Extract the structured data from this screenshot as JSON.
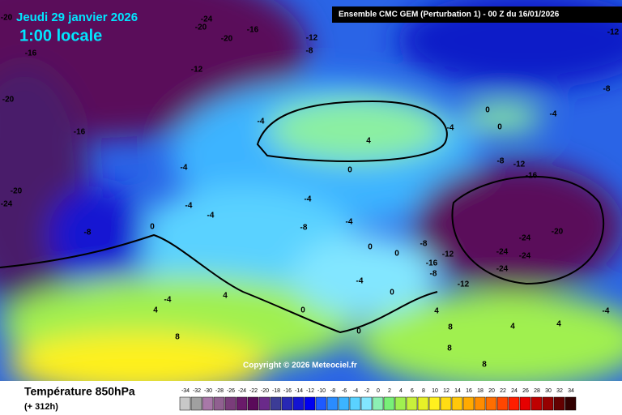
{
  "header": {
    "date": "Jeudi 29 janvier 2026",
    "time": "1:00 locale",
    "model": "Ensemble CMC GEM  (Perturbation 1)  -  00 Z du 16/01/2026",
    "copyright": "Copyright © 2026 Meteociel.fr"
  },
  "map": {
    "contour_labels": [
      -20,
      -24,
      -20,
      -16,
      -20,
      -12,
      -8,
      -12,
      -16,
      -12,
      -20,
      -16,
      -4,
      4,
      0,
      -4,
      -8,
      -4,
      0,
      -8,
      -12,
      -16,
      -4,
      0,
      -20,
      -24,
      -4,
      -4,
      -4,
      -4,
      -8,
      0,
      -8,
      -20,
      -8,
      -24,
      0,
      0,
      -24,
      -24,
      -16,
      -12,
      -24,
      -8,
      -12,
      -4,
      -4,
      4,
      0,
      0,
      4,
      4,
      -4,
      0,
      8,
      8,
      4,
      4,
      8,
      8
    ]
  },
  "legend": {
    "title": "Température 850hPa",
    "lead": "(+ 312h)",
    "ticks": [
      -34,
      -32,
      -30,
      -28,
      -26,
      -24,
      -22,
      -20,
      -18,
      -16,
      -14,
      -12,
      -10,
      -8,
      -6,
      -4,
      -2,
      0,
      2,
      4,
      6,
      8,
      10,
      12,
      14,
      16,
      18,
      20,
      22,
      24,
      26,
      28,
      30,
      32,
      34
    ],
    "colors": [
      "#c8c8c8",
      "#a0a0a0",
      "#a878a8",
      "#906090",
      "#7a3c7a",
      "#6a1a6a",
      "#5a0a5a",
      "#6a2a8a",
      "#3c3c96",
      "#2828b4",
      "#1414d2",
      "#0000f0",
      "#1e5aff",
      "#2a8cff",
      "#3cb4ff",
      "#5ad2ff",
      "#82e6ff",
      "#8cf0b4",
      "#78f078",
      "#a0f050",
      "#c8f03c",
      "#e6f028",
      "#fff01e",
      "#ffdc14",
      "#ffc80a",
      "#ffaa00",
      "#ff8c00",
      "#ff6e00",
      "#ff4600",
      "#ff1e00",
      "#e60000",
      "#be0000",
      "#960000",
      "#640000",
      "#320000"
    ]
  }
}
